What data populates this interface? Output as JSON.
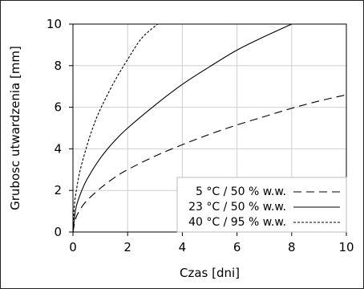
{
  "chart_data": {
    "type": "line",
    "xlabel": "Czas [dni]",
    "ylabel": "Grubosc utwardzenia [mm]",
    "xlim": [
      0,
      10
    ],
    "ylim": [
      0,
      10
    ],
    "xticks": [
      "0",
      "2",
      "4",
      "6",
      "8",
      "10"
    ],
    "yticks": [
      "0",
      "2",
      "4",
      "6",
      "8",
      "10"
    ],
    "grid": true,
    "legend_position": "bottom-right",
    "series": [
      {
        "name": "5 °C / 50 % w.w.",
        "dash": "long-dash",
        "x": [
          0,
          0.1,
          0.25,
          0.5,
          1,
          1.5,
          2,
          3,
          4,
          5,
          6,
          7,
          8,
          9,
          10
        ],
        "y": [
          0,
          0.65,
          1.05,
          1.5,
          2.1,
          2.6,
          3.0,
          3.65,
          4.2,
          4.7,
          5.15,
          5.55,
          5.95,
          6.3,
          6.6
        ]
      },
      {
        "name": "23 °C / 50 % w.w.",
        "dash": "solid",
        "x": [
          0,
          0.1,
          0.25,
          0.5,
          1,
          1.5,
          2,
          3,
          4,
          5,
          6,
          7,
          8
        ],
        "y": [
          0,
          1.1,
          1.75,
          2.5,
          3.55,
          4.35,
          5.0,
          6.1,
          7.1,
          7.95,
          8.75,
          9.4,
          10.0
        ]
      },
      {
        "name": "40 °C / 95 % w.w.",
        "dash": "short-dash",
        "x": [
          0,
          0.05,
          0.1,
          0.25,
          0.5,
          0.75,
          1,
          1.5,
          2,
          2.5,
          3,
          3.1
        ],
        "y": [
          0,
          1.3,
          1.8,
          2.9,
          4.1,
          5.1,
          5.9,
          7.2,
          8.3,
          9.3,
          9.9,
          10.0
        ]
      }
    ]
  }
}
